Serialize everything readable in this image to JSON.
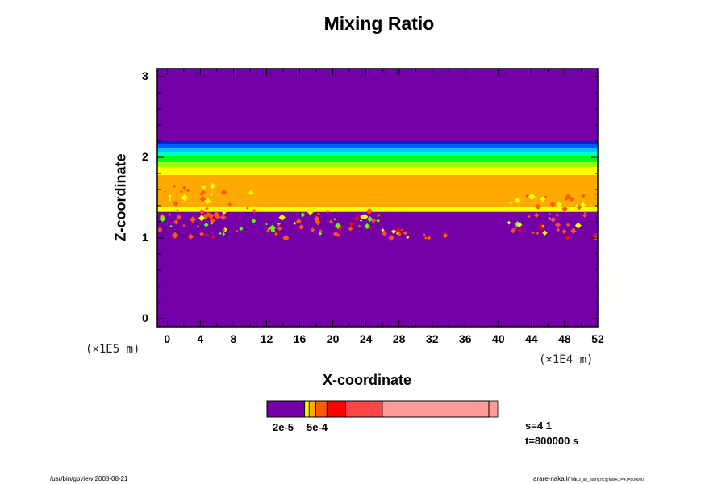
{
  "chart_data": {
    "type": "heatmap",
    "title": "Mixing Ratio",
    "xlabel": "X-coordinate",
    "ylabel": "Z-coordinate",
    "x_unit": "(×1E4 m)",
    "y_unit": "(×1E5 m)",
    "xlim": [
      -1.2,
      52
    ],
    "ylim": [
      -0.1,
      3.1
    ],
    "xticks": [
      "0",
      "4",
      "8",
      "12",
      "16",
      "20",
      "24",
      "28",
      "32",
      "36",
      "40",
      "44",
      "48",
      "52"
    ],
    "yticks": [
      "0",
      "1",
      "2",
      "3"
    ],
    "bands": [
      {
        "z_top": 3.1,
        "z_bottom": 2.2,
        "color": "#7300a6"
      },
      {
        "z_top": 2.2,
        "z_bottom": 2.17,
        "color": "#0a1fd0"
      },
      {
        "z_top": 2.17,
        "z_bottom": 2.12,
        "color": "#005aff"
      },
      {
        "z_top": 2.12,
        "z_bottom": 2.06,
        "color": "#00c8ff"
      },
      {
        "z_top": 2.06,
        "z_bottom": 2.02,
        "color": "#00ffc8"
      },
      {
        "z_top": 2.02,
        "z_bottom": 1.94,
        "color": "#00ff1e"
      },
      {
        "z_top": 1.94,
        "z_bottom": 1.88,
        "color": "#a0ff00"
      },
      {
        "z_top": 1.88,
        "z_bottom": 1.78,
        "color": "#ffff00"
      },
      {
        "z_top": 1.78,
        "z_bottom": 1.38,
        "color": "#ffaa00"
      },
      {
        "z_top": 1.38,
        "z_bottom": 1.34,
        "color": "#ffff00"
      },
      {
        "z_top": 1.34,
        "z_bottom": 1.32,
        "color": "#5aff00"
      },
      {
        "z_top": 1.32,
        "z_bottom": -0.1,
        "color": "#7300a6"
      }
    ],
    "colorbar": {
      "colors": [
        "#7300a6",
        "#ffff00",
        "#ffaa00",
        "#ff5a00",
        "#ff0000",
        "#ff4646",
        "#ff9a9a"
      ],
      "fractions": [
        0.17,
        0.02,
        0.03,
        0.05,
        0.085,
        0.165,
        0.52
      ],
      "labels": [
        "2e-5",
        "5e-4"
      ]
    }
  },
  "annotations": {
    "s_label": "s=4 1",
    "t_label": "t=800000 s"
  },
  "footer": {
    "left": "/usr/bin/gpview 2008-08-21",
    "right_main": "arare-nakajima",
    "right_sub": "03_all_Bamy.nc@MixR,s=4,t=800000"
  }
}
